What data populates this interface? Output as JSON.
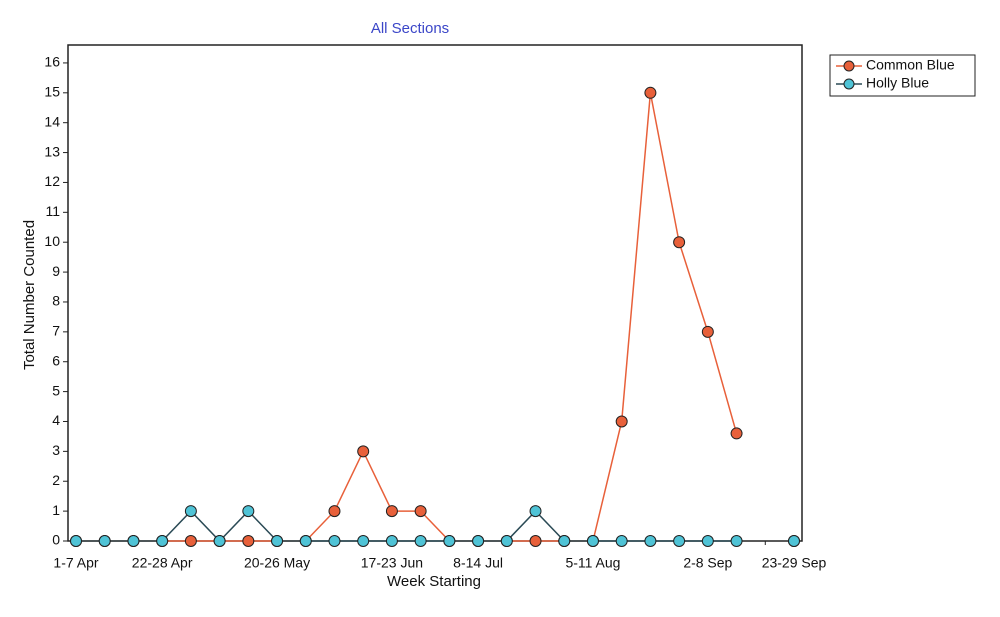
{
  "chart_data": {
    "type": "line",
    "title": "All Sections",
    "x_label": "Week Starting",
    "y_label": "Total Number Counted",
    "categories": [
      "1-7 Apr",
      null,
      null,
      "22-28 Apr",
      null,
      null,
      null,
      "20-26 May",
      null,
      null,
      null,
      "17-23 Jun",
      null,
      null,
      "8-14 Jul",
      null,
      null,
      null,
      "5-11 Aug",
      null,
      null,
      null,
      "2-8 Sep",
      null,
      null,
      "23-29 Sep"
    ],
    "series": [
      {
        "name": "Common Blue",
        "color": "#e8603a",
        "values": [
          0,
          0,
          0,
          0,
          0,
          0,
          0,
          0,
          0,
          1,
          3,
          1,
          1,
          0,
          0,
          0,
          0,
          0,
          0,
          4,
          15,
          10,
          7,
          3.6,
          null,
          0
        ]
      },
      {
        "name": "Holly Blue",
        "color": "#4fc3d6",
        "values": [
          0,
          0,
          0,
          0,
          1,
          0,
          1,
          0,
          0,
          0,
          0,
          0,
          0,
          0,
          0,
          0,
          1,
          0,
          0,
          0,
          0,
          0,
          0,
          0,
          null,
          0
        ]
      }
    ],
    "ylim": [
      0,
      16.6
    ],
    "yticks": [
      0,
      1,
      2,
      3,
      4,
      5,
      6,
      7,
      8,
      9,
      10,
      11,
      12,
      13,
      14,
      15,
      16
    ],
    "legend": "top-right"
  }
}
